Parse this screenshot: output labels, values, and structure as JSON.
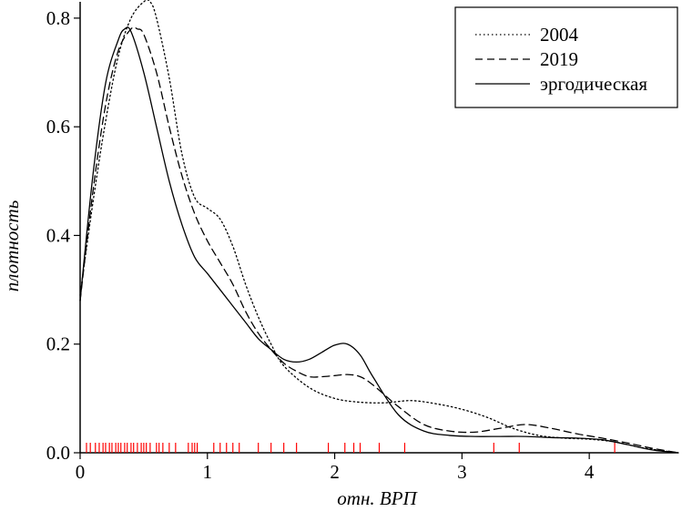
{
  "chart_data": {
    "type": "line",
    "xlabel": "отн. ВРП",
    "ylabel": "плотность",
    "xlim": [
      0,
      4.7
    ],
    "ylim": [
      0,
      0.83
    ],
    "x_ticks": [
      "0",
      "1",
      "2",
      "3",
      "4"
    ],
    "x_tick_values": [
      0,
      1,
      2,
      3,
      4
    ],
    "y_ticks": [
      "0.0",
      "0.2",
      "0.4",
      "0.6",
      "0.8"
    ],
    "y_tick_values": [
      0,
      0.2,
      0.4,
      0.6,
      0.8
    ],
    "grid": false,
    "legend_position": "top-right",
    "rug_color": "#ff0000",
    "rug": [
      0.05,
      0.08,
      0.12,
      0.15,
      0.18,
      0.2,
      0.23,
      0.25,
      0.28,
      0.3,
      0.32,
      0.35,
      0.37,
      0.4,
      0.42,
      0.45,
      0.48,
      0.5,
      0.52,
      0.55,
      0.6,
      0.62,
      0.65,
      0.7,
      0.75,
      0.85,
      0.88,
      0.9,
      0.92,
      1.05,
      1.1,
      1.15,
      1.2,
      1.25,
      1.4,
      1.5,
      1.6,
      1.7,
      1.95,
      2.08,
      2.15,
      2.2,
      2.35,
      2.55,
      3.25,
      3.45,
      4.2
    ],
    "series": [
      {
        "name": "2004",
        "style": "dotted",
        "x": [
          0,
          0.1,
          0.2,
          0.3,
          0.4,
          0.5,
          0.55,
          0.6,
          0.7,
          0.8,
          0.9,
          1.0,
          1.1,
          1.2,
          1.3,
          1.4,
          1.5,
          1.6,
          1.8,
          2.0,
          2.2,
          2.4,
          2.6,
          2.8,
          3.0,
          3.2,
          3.4,
          3.6,
          3.8,
          4.0,
          4.2,
          4.4,
          4.6,
          4.7
        ],
        "y": [
          0.29,
          0.46,
          0.61,
          0.73,
          0.8,
          0.83,
          0.83,
          0.8,
          0.69,
          0.55,
          0.47,
          0.45,
          0.43,
          0.38,
          0.31,
          0.25,
          0.2,
          0.16,
          0.12,
          0.1,
          0.093,
          0.092,
          0.096,
          0.09,
          0.08,
          0.065,
          0.045,
          0.032,
          0.027,
          0.025,
          0.02,
          0.01,
          0.003,
          0.0
        ]
      },
      {
        "name": "2019",
        "style": "dashed",
        "x": [
          0,
          0.1,
          0.2,
          0.3,
          0.4,
          0.45,
          0.5,
          0.6,
          0.7,
          0.8,
          0.9,
          1.0,
          1.1,
          1.2,
          1.3,
          1.4,
          1.5,
          1.6,
          1.7,
          1.8,
          1.9,
          2.0,
          2.1,
          2.2,
          2.3,
          2.5,
          2.7,
          2.9,
          3.1,
          3.3,
          3.5,
          3.7,
          3.9,
          4.1,
          4.3,
          4.5,
          4.7
        ],
        "y": [
          0.28,
          0.48,
          0.64,
          0.74,
          0.78,
          0.78,
          0.77,
          0.7,
          0.6,
          0.51,
          0.44,
          0.39,
          0.35,
          0.31,
          0.26,
          0.22,
          0.19,
          0.165,
          0.15,
          0.14,
          0.14,
          0.142,
          0.144,
          0.14,
          0.125,
          0.085,
          0.052,
          0.04,
          0.038,
          0.045,
          0.052,
          0.045,
          0.035,
          0.027,
          0.018,
          0.008,
          0.0
        ]
      },
      {
        "name": "эргодическая",
        "style": "solid",
        "x": [
          0,
          0.1,
          0.2,
          0.3,
          0.35,
          0.4,
          0.5,
          0.6,
          0.7,
          0.8,
          0.9,
          1.0,
          1.1,
          1.2,
          1.3,
          1.4,
          1.5,
          1.6,
          1.7,
          1.8,
          1.9,
          2.0,
          2.1,
          2.2,
          2.3,
          2.5,
          2.7,
          2.9,
          3.1,
          3.3,
          3.5,
          3.7,
          3.9,
          4.1,
          4.3,
          4.5,
          4.7
        ],
        "y": [
          0.28,
          0.51,
          0.68,
          0.76,
          0.78,
          0.775,
          0.7,
          0.6,
          0.5,
          0.42,
          0.36,
          0.33,
          0.3,
          0.27,
          0.24,
          0.21,
          0.19,
          0.172,
          0.167,
          0.172,
          0.185,
          0.198,
          0.2,
          0.18,
          0.14,
          0.07,
          0.04,
          0.032,
          0.03,
          0.03,
          0.03,
          0.028,
          0.027,
          0.024,
          0.015,
          0.005,
          0.0
        ]
      }
    ]
  }
}
